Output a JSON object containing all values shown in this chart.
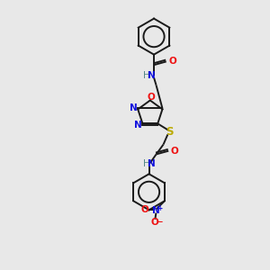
{
  "background_color": "#e8e8e8",
  "bond_color": "#1a1a1a",
  "N_color": "#1010dd",
  "O_color": "#ee1111",
  "S_color": "#bbaa00",
  "H_color": "#558888",
  "figsize": [
    3.0,
    3.0
  ],
  "dpi": 100,
  "xlim": [
    0,
    10
  ],
  "ylim": [
    0,
    14
  ]
}
